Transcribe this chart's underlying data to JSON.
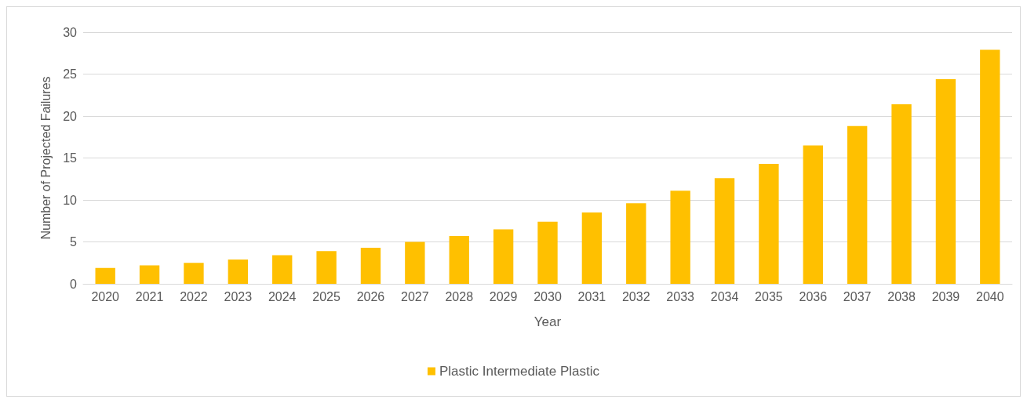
{
  "chart_data": {
    "type": "bar",
    "xlabel": "Year",
    "ylabel": "Number of Projected Failures",
    "categories": [
      "2020",
      "2021",
      "2022",
      "2023",
      "2024",
      "2025",
      "2026",
      "2027",
      "2028",
      "2029",
      "2030",
      "2031",
      "2032",
      "2033",
      "2034",
      "2035",
      "2036",
      "2037",
      "2038",
      "2039",
      "2040"
    ],
    "series": [
      {
        "name": "Plastic Intermediate Plastic",
        "color": "#ffc000",
        "values": [
          1.9,
          2.2,
          2.5,
          2.9,
          3.4,
          3.9,
          4.3,
          5.0,
          5.7,
          6.5,
          7.4,
          8.5,
          9.6,
          11.1,
          12.6,
          14.3,
          16.5,
          18.8,
          21.4,
          24.4,
          27.9
        ]
      }
    ],
    "ylim": [
      0,
      30
    ],
    "yticks": [
      0,
      5,
      10,
      15,
      20,
      25,
      30
    ],
    "grid": "y",
    "legend": "bottom"
  }
}
